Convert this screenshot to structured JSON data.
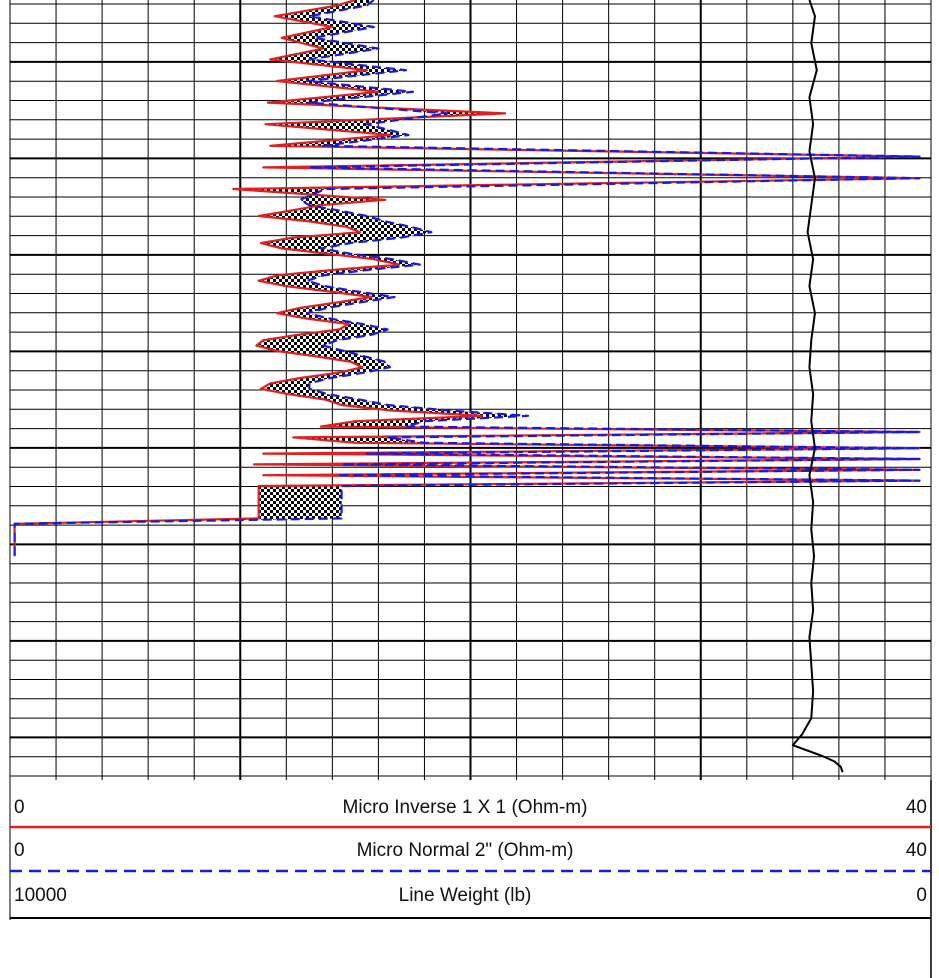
{
  "colors": {
    "grid": "#000000",
    "micro_inverse": "#e02020",
    "micro_normal": "#1a1adf",
    "line_weight": "#000000",
    "fill_pattern": "checker-black-white"
  },
  "chart_data": {
    "type": "line",
    "title": "",
    "y_axis": "depth (top to bottom, unlabeled)",
    "fill_between": [
      "Micro Inverse 1 X 1 (Ohm-m)",
      "Micro Normal 2\" (Ohm-m)"
    ],
    "tracks": [
      {
        "name": "Micro Inverse 1 X 1 (Ohm-m)",
        "scale_left": "0",
        "scale_right": "40",
        "style": "solid",
        "color": "#e02020"
      },
      {
        "name": "Micro Normal 2\" (Ohm-m)",
        "scale_left": "0",
        "scale_right": "40",
        "style": "dashed",
        "color": "#1a1adf"
      },
      {
        "name": "Line Weight (lb)",
        "scale_left": "10000",
        "scale_right": "0",
        "style": "solid",
        "color": "#000000"
      }
    ],
    "series": [
      {
        "name": "Micro Inverse 1 X 1 (Ohm-m)",
        "depth": [
          0,
          2,
          6,
          10,
          14,
          18,
          22,
          26,
          30,
          34,
          38,
          42,
          46,
          50,
          54,
          58,
          62,
          66,
          70,
          74,
          76,
          78,
          80,
          82,
          84,
          86,
          88,
          90,
          92,
          94,
          96,
          98,
          100,
          102,
          104,
          106,
          108,
          110,
          112,
          114,
          116,
          118,
          120,
          122,
          124,
          126,
          128,
          130,
          132,
          134,
          136,
          138,
          140,
          142,
          144,
          146,
          148,
          150,
          152,
          154,
          156,
          158,
          160,
          162,
          164,
          166,
          168,
          170,
          172,
          174,
          176,
          178,
          180,
          182,
          184,
          186,
          188,
          190,
          192,
          194,
          196,
          198,
          200,
          202,
          204,
          206
        ],
        "values": [
          15.0,
          14.2,
          11.5,
          14.0,
          11.8,
          13.6,
          11.3,
          15.5,
          11.6,
          16.0,
          11.2,
          21.5,
          11.1,
          16.5,
          11.3,
          39.5,
          11.0,
          39.5,
          9.7,
          16.3,
          13.5,
          12.2,
          10.8,
          13.0,
          14.6,
          15.2,
          12.3,
          10.9,
          11.8,
          13.8,
          15.8,
          16.9,
          14.0,
          11.6,
          10.8,
          12.0,
          13.9,
          15.7,
          14.2,
          12.6,
          11.6,
          12.9,
          14.7,
          14.3,
          12.5,
          11.0,
          10.7,
          11.6,
          13.3,
          14.8,
          15.3,
          14.3,
          12.6,
          11.3,
          10.9,
          12.1,
          13.7,
          14.4,
          16.5,
          20.5,
          15.0,
          13.5,
          39.5,
          12.3,
          15.0,
          39.5,
          11.0,
          39.5,
          10.6,
          39.5,
          11.0,
          39.5,
          10.8,
          10.8,
          10.8,
          10.8,
          10.8,
          10.8,
          10.8,
          0.2,
          0.2,
          0.2,
          0.2,
          0.2,
          0.2,
          0.2
        ]
      },
      {
        "name": "Micro Normal 2\" (Ohm-m)",
        "depth": [
          0,
          2,
          6,
          10,
          14,
          18,
          22,
          26,
          30,
          34,
          38,
          42,
          46,
          50,
          54,
          58,
          62,
          66,
          70,
          74,
          76,
          78,
          80,
          82,
          84,
          86,
          88,
          90,
          92,
          94,
          96,
          98,
          100,
          102,
          104,
          106,
          108,
          110,
          112,
          114,
          116,
          118,
          120,
          122,
          124,
          126,
          128,
          130,
          132,
          134,
          136,
          138,
          140,
          142,
          144,
          146,
          148,
          150,
          152,
          154,
          156,
          158,
          160,
          162,
          164,
          166,
          168,
          170,
          172,
          174,
          176,
          178,
          180,
          182,
          184,
          186,
          188,
          190,
          192,
          194,
          196,
          198,
          200,
          202,
          204,
          206
        ],
        "values": [
          15.8,
          15.5,
          13.0,
          15.8,
          13.2,
          16.0,
          13.0,
          17.2,
          12.9,
          17.5,
          13.0,
          19.0,
          15.5,
          17.3,
          13.6,
          39.5,
          13.0,
          39.5,
          13.7,
          12.6,
          13.0,
          14.3,
          15.5,
          16.3,
          17.4,
          18.3,
          17.0,
          14.8,
          13.5,
          14.8,
          16.6,
          17.8,
          15.5,
          13.6,
          12.9,
          13.7,
          15.1,
          16.7,
          15.2,
          13.8,
          12.9,
          13.9,
          15.3,
          16.4,
          15.7,
          14.2,
          13.6,
          14.5,
          15.4,
          16.3,
          16.5,
          15.4,
          13.9,
          13.0,
          13.0,
          13.8,
          15.2,
          16.4,
          19.0,
          22.5,
          18.0,
          17.2,
          39.5,
          16.4,
          18.0,
          39.5,
          15.5,
          39.5,
          14.4,
          39.5,
          14.2,
          39.5,
          14.4,
          14.4,
          14.4,
          14.4,
          14.4,
          14.4,
          14.4,
          0.2,
          0.2,
          0.2,
          0.2,
          0.2,
          0.2,
          0.2
        ]
      },
      {
        "name": "Line Weight (lb)",
        "depth": [
          0,
          6,
          16,
          26,
          36,
          46,
          56,
          66,
          76,
          86,
          96,
          106,
          116,
          126,
          136,
          146,
          156,
          166,
          176,
          186,
          196,
          206,
          216,
          226,
          236,
          246,
          256,
          266,
          272,
          276,
          280,
          282,
          284,
          286
        ],
        "values": [
          1320,
          1260,
          1300,
          1240,
          1320,
          1280,
          1320,
          1260,
          1300,
          1340,
          1280,
          1320,
          1260,
          1300,
          1320,
          1280,
          1300,
          1260,
          1320,
          1280,
          1300,
          1270,
          1300,
          1280,
          1320,
          1300,
          1280,
          1300,
          1400,
          1500,
          1180,
          1050,
          980,
          960
        ]
      }
    ]
  },
  "legend": {
    "rows": [
      {
        "left": "0",
        "label": "Micro Inverse 1 X 1 (Ohm-m)",
        "right": "40"
      },
      {
        "left": "0",
        "label": "Micro Normal 2\" (Ohm-m)",
        "right": "40"
      },
      {
        "left": "10000",
        "label": "Line Weight (lb)",
        "right": "0"
      }
    ]
  }
}
